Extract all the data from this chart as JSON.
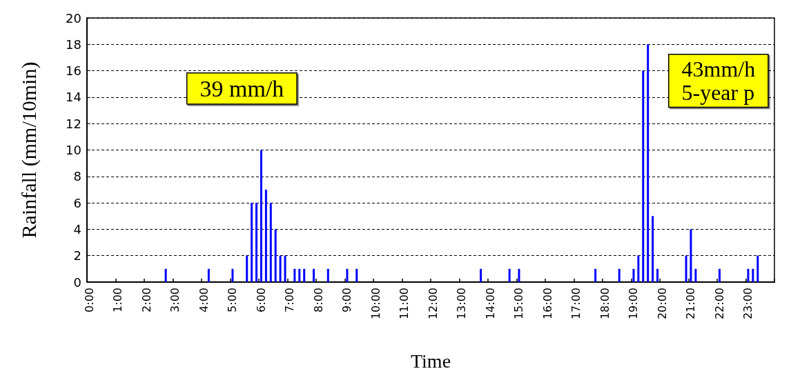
{
  "chart_data": {
    "type": "bar",
    "xlabel": "Time",
    "ylabel": "Rainfall (mm/10min)",
    "categories": [
      "0:00",
      null,
      null,
      null,
      null,
      null,
      "1:00",
      null,
      null,
      null,
      null,
      null,
      "2:00",
      null,
      null,
      null,
      null,
      null,
      "3:00",
      null,
      null,
      null,
      null,
      null,
      "4:00",
      null,
      null,
      null,
      null,
      null,
      "5:00",
      null,
      null,
      null,
      null,
      null,
      "6:00",
      null,
      null,
      null,
      null,
      null,
      "7:00",
      null,
      null,
      null,
      null,
      null,
      "8:00",
      null,
      null,
      null,
      null,
      null,
      "9:00",
      null,
      null,
      null,
      null,
      null,
      "10:00",
      null,
      null,
      null,
      null,
      null,
      "11:00",
      null,
      null,
      null,
      null,
      null,
      "12:00",
      null,
      null,
      null,
      null,
      null,
      "13:00",
      null,
      null,
      null,
      null,
      null,
      "14:00",
      null,
      null,
      null,
      null,
      null,
      "15:00",
      null,
      null,
      null,
      null,
      null,
      "16:00",
      null,
      null,
      null,
      null,
      null,
      "17:00",
      null,
      null,
      null,
      null,
      null,
      "18:00",
      null,
      null,
      null,
      null,
      null,
      "19:00",
      null,
      null,
      null,
      null,
      null,
      "20:00",
      null,
      null,
      null,
      null,
      null,
      "21:00",
      null,
      null,
      null,
      null,
      null,
      "22:00",
      null,
      null,
      null,
      null,
      null,
      "23:00",
      null,
      null,
      null,
      null,
      null
    ],
    "values": [
      0,
      0,
      0,
      0,
      0,
      0,
      0,
      0,
      0,
      0,
      0,
      0,
      0,
      0,
      0,
      0,
      1,
      0,
      0,
      0,
      0,
      0,
      0,
      0,
      0,
      1,
      0,
      0,
      0,
      0,
      1,
      0,
      0,
      2,
      6,
      6,
      10,
      7,
      6,
      4,
      2,
      2,
      0,
      1,
      1,
      1,
      0,
      1,
      0,
      0,
      1,
      0,
      0,
      0,
      1,
      0,
      1,
      0,
      0,
      0,
      0,
      0,
      0,
      0,
      0,
      0,
      0,
      0,
      0,
      0,
      0,
      0,
      0,
      0,
      0,
      0,
      0,
      0,
      0,
      0,
      0,
      0,
      1,
      0,
      0,
      0,
      0,
      0,
      1,
      0,
      1,
      0,
      0,
      0,
      0,
      0,
      0,
      0,
      0,
      0,
      0,
      0,
      0,
      0,
      0,
      0,
      1,
      0,
      0,
      0,
      0,
      1,
      0,
      0,
      1,
      2,
      16,
      18,
      5,
      1,
      0,
      0,
      0,
      0,
      0,
      2,
      4,
      1,
      0,
      0,
      0,
      0,
      1,
      0,
      0,
      0,
      0,
      0,
      1,
      1,
      2,
      0,
      0,
      0
    ],
    "color": "#0000ff",
    "ylim": [
      0,
      20
    ],
    "yticks": [
      0,
      2,
      4,
      6,
      8,
      10,
      12,
      14,
      16,
      18,
      20
    ],
    "grid": "y",
    "annotations": [
      "39 mm/h",
      "43mm/h\n5-year p"
    ]
  }
}
